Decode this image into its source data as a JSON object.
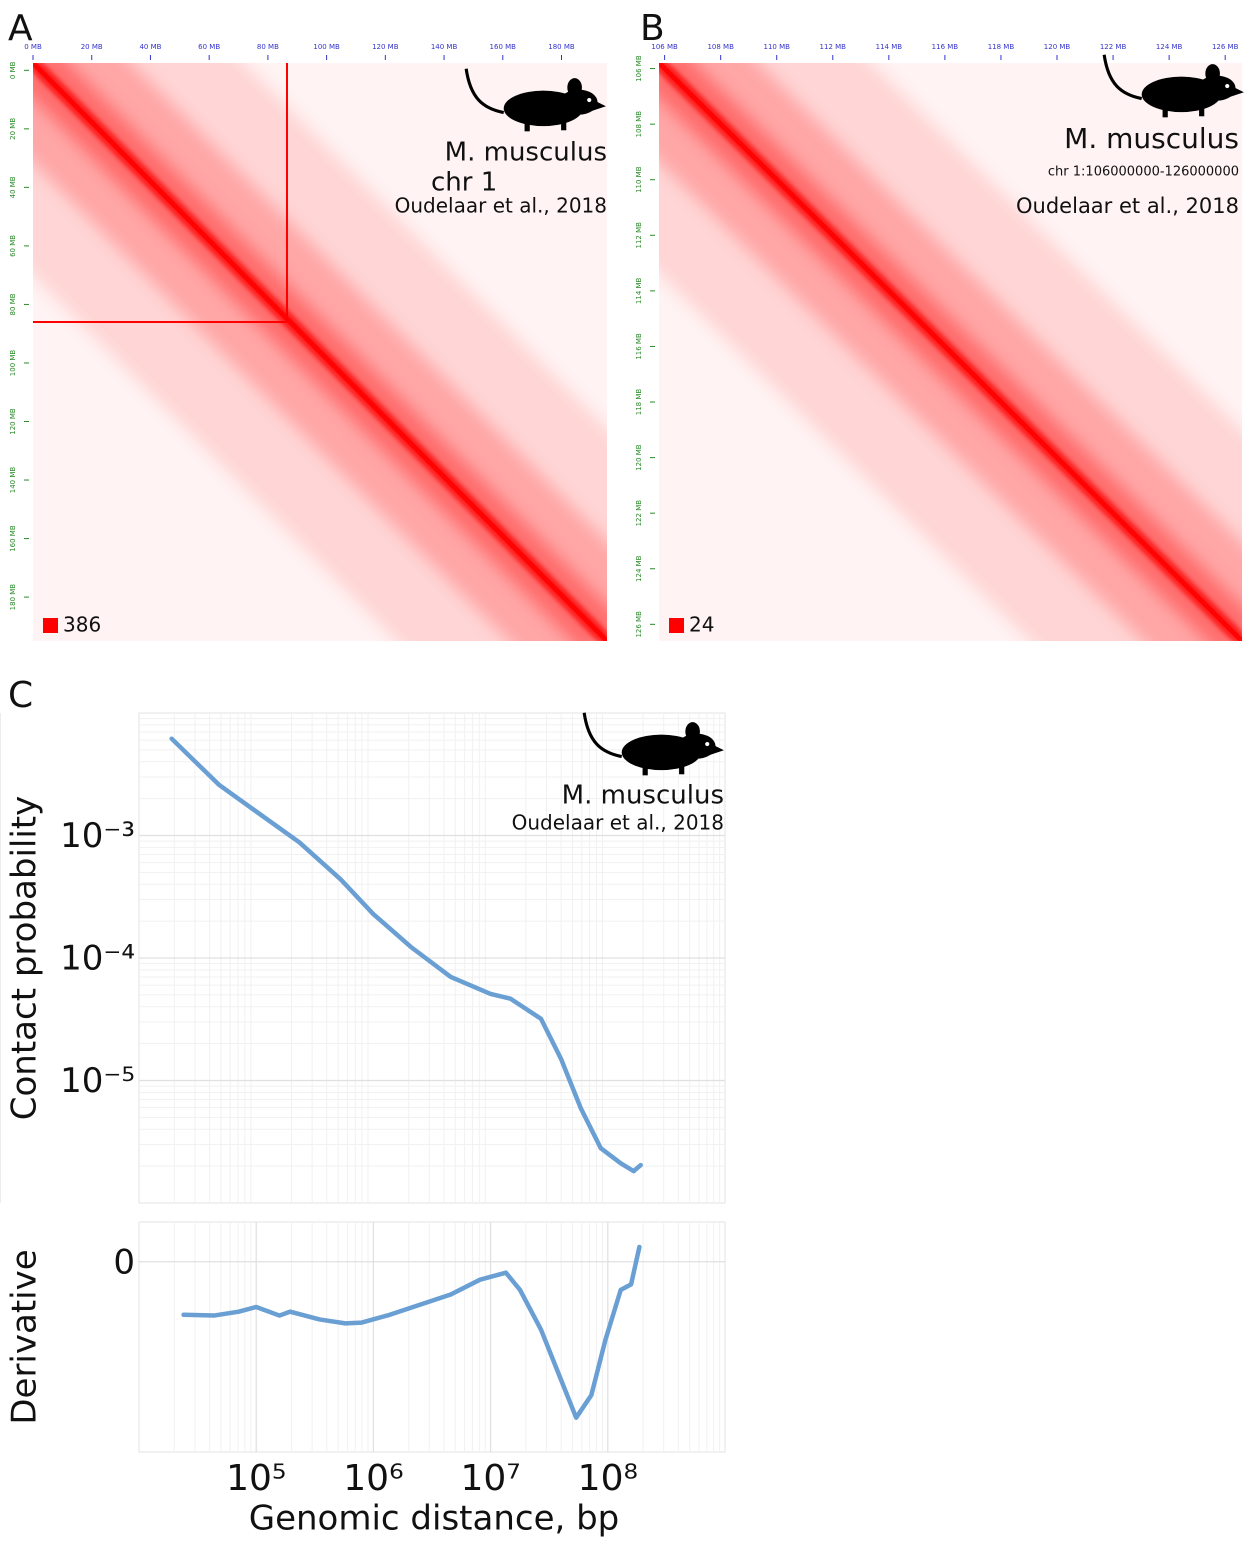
{
  "chart_data": [
    {
      "type": "heatmap",
      "panel": "A",
      "annotations": [
        "M. musculus",
        "chr 1",
        "Oudelaar et al., 2018"
      ],
      "xlim": [
        0,
        195.5
      ],
      "ylim": [
        -2.5,
        195
      ],
      "xticks": [
        {
          "value": 0,
          "label": "0 MB"
        },
        {
          "value": 20,
          "label": "20 MB"
        },
        {
          "value": 40,
          "label": "40 MB"
        },
        {
          "value": 60,
          "label": "60 MB"
        },
        {
          "value": 80,
          "label": "80 MB"
        },
        {
          "value": 100,
          "label": "100 MB"
        },
        {
          "value": 120,
          "label": "120 MB"
        },
        {
          "value": 140,
          "label": "140 MB"
        },
        {
          "value": 160,
          "label": "160 MB"
        },
        {
          "value": 180,
          "label": "180 MB"
        }
      ],
      "yticks": [
        {
          "value": 0,
          "label": "0 MB"
        },
        {
          "value": 20,
          "label": "20 MB"
        },
        {
          "value": 40,
          "label": "40 MB"
        },
        {
          "value": 60,
          "label": "60 MB"
        },
        {
          "value": 80,
          "label": "80 MB"
        },
        {
          "value": 100,
          "label": "100 MB"
        },
        {
          "value": 120,
          "label": "120 MB"
        },
        {
          "value": 140,
          "label": "140 MB"
        },
        {
          "value": 160,
          "label": "160 MB"
        },
        {
          "value": 180,
          "label": "180 MB"
        }
      ],
      "color": "#ff0000",
      "color_max": 386
    },
    {
      "type": "heatmap",
      "panel": "B",
      "annotations": [
        "M. musculus",
        "chr 1:106000000-126000000",
        "Oudelaar et al., 2018"
      ],
      "xlim": [
        105.8,
        126.6
      ],
      "ylim": [
        105.8,
        126.6
      ],
      "xticks": [
        {
          "value": 106,
          "label": "106 MB"
        },
        {
          "value": 108,
          "label": "108 MB"
        },
        {
          "value": 110,
          "label": "110 MB"
        },
        {
          "value": 112,
          "label": "112 MB"
        },
        {
          "value": 114,
          "label": "114 MB"
        },
        {
          "value": 116,
          "label": "116 MB"
        },
        {
          "value": 118,
          "label": "118 MB"
        },
        {
          "value": 120,
          "label": "120 MB"
        },
        {
          "value": 122,
          "label": "122 MB"
        },
        {
          "value": 124,
          "label": "124 MB"
        },
        {
          "value": 126,
          "label": "126 MB"
        }
      ],
      "yticks": [
        {
          "value": 106,
          "label": "106 MB"
        },
        {
          "value": 108,
          "label": "108 MB"
        },
        {
          "value": 110,
          "label": "110 MB"
        },
        {
          "value": 112,
          "label": "112 MB"
        },
        {
          "value": 114,
          "label": "114 MB"
        },
        {
          "value": 116,
          "label": "116 MB"
        },
        {
          "value": 118,
          "label": "118 MB"
        },
        {
          "value": 120,
          "label": "120 MB"
        },
        {
          "value": 122,
          "label": "122 MB"
        },
        {
          "value": 124,
          "label": "124 MB"
        },
        {
          "value": 126,
          "label": "126 MB"
        }
      ],
      "color": "#ff0000",
      "color_max": 24
    },
    {
      "type": "line",
      "panel": "C",
      "annotations": [
        "M. musculus",
        "Oudelaar et al., 2018"
      ],
      "y_label": "Contact probability",
      "log_x": true,
      "log_y": true,
      "grid": true,
      "xlim": [
        10000,
        1000000000
      ],
      "ylim": [
        1e-06,
        0.01
      ],
      "yticks": [
        {
          "value": 0.001,
          "label": "10⁻³"
        },
        {
          "value": 0.0001,
          "label": "10⁻⁴"
        },
        {
          "value": 1e-05,
          "label": "10⁻⁵"
        }
      ],
      "series": [
        {
          "color": "#6a9fd4",
          "x": [
            19000,
            48000,
            100000,
            234000,
            525000,
            1000000,
            2090000,
            4570000,
            10000000,
            14800000,
            26900000,
            39800000,
            58900000,
            87100000,
            129000000,
            166000000,
            191000000
          ],
          "values": [
            0.00617,
            0.0026,
            0.00157,
            0.000877,
            0.000439,
            0.000228,
            0.000123,
            7.01e-05,
            5.09e-05,
            4.65e-05,
            3.19e-05,
            1.51e-05,
            5.92e-06,
            2.8e-06,
            2.11e-06,
            1.82e-06,
            2.04e-06
          ]
        }
      ]
    },
    {
      "type": "line",
      "y_label": "Derivative",
      "x_label": "Genomic distance, bp",
      "log_x": true,
      "grid": true,
      "xlim": [
        10000,
        1000000000
      ],
      "ylim": [
        -2.44,
        0.51
      ],
      "xticks": [
        {
          "value": 100000,
          "label": "10⁵"
        },
        {
          "value": 1000000,
          "label": "10⁶"
        },
        {
          "value": 10000000,
          "label": "10⁷"
        },
        {
          "value": 100000000,
          "label": "10⁸"
        }
      ],
      "yticks": [
        0
      ],
      "series": [
        {
          "color": "#6a9fd4",
          "x": [
            24000,
            43600,
            70800,
            100000,
            158000,
            195000,
            347000,
            575000,
            794000,
            1380000,
            2510000,
            4570000,
            8130000,
            13500000,
            17800000,
            26900000,
            39800000,
            53700000,
            72400000,
            95500000,
            129000000,
            158000000,
            186000000
          ],
          "values": [
            -0.68,
            -0.69,
            -0.64,
            -0.58,
            -0.69,
            -0.64,
            -0.74,
            -0.79,
            -0.78,
            -0.68,
            -0.55,
            -0.42,
            -0.23,
            -0.14,
            -0.36,
            -0.87,
            -1.51,
            -2.0,
            -1.71,
            -1.0,
            -0.36,
            -0.29,
            0.19
          ]
        }
      ]
    }
  ]
}
